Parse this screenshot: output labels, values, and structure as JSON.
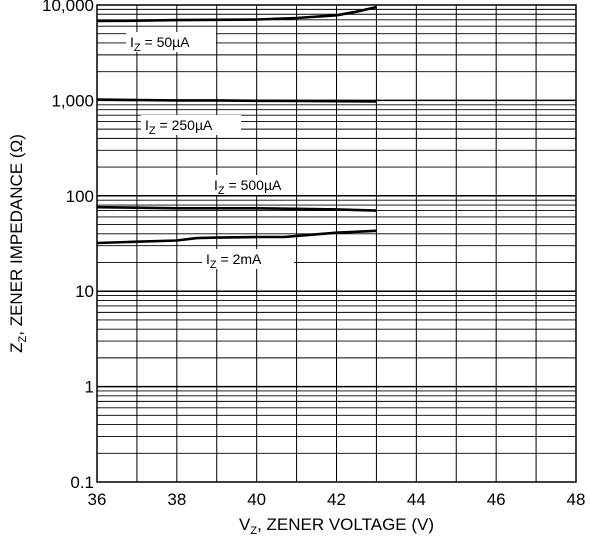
{
  "chart_data": {
    "type": "line",
    "xlabel": "V_Z, ZENER VOLTAGE (V)",
    "ylabel": "Z_Z, ZENER IMPEDANCE (Ω)",
    "xlim": [
      36,
      48
    ],
    "ylim": [
      0.1,
      10000
    ],
    "yscale": "log",
    "grid": true,
    "x_ticks": [
      "36",
      "38",
      "40",
      "42",
      "44",
      "46",
      "48"
    ],
    "y_ticks": [
      "0.1",
      "1",
      "10",
      "100",
      "1,000",
      "10,000"
    ],
    "series": [
      {
        "name": "I_Z = 50µA",
        "x": [
          36,
          37,
          38,
          39,
          40,
          41,
          42,
          42.5,
          43
        ],
        "y": [
          6800,
          6850,
          6950,
          7000,
          7050,
          7300,
          7800,
          8500,
          9500
        ]
      },
      {
        "name": "I_Z = 250µA",
        "x": [
          36,
          37,
          38,
          39,
          40,
          41,
          42,
          43
        ],
        "y": [
          1020,
          1010,
          1000,
          1000,
          990,
          985,
          980,
          975
        ]
      },
      {
        "name": "I_Z = 500µA",
        "x": [
          36,
          37,
          38,
          39,
          40,
          41,
          42,
          43
        ],
        "y": [
          76,
          75,
          74,
          74,
          74,
          73,
          72,
          70
        ]
      },
      {
        "name": "I_Z = 2mA",
        "x": [
          36,
          37,
          38,
          38.5,
          39,
          40,
          40.7,
          41,
          42,
          43
        ],
        "y": [
          32,
          33,
          34,
          36,
          36.5,
          37,
          37,
          38,
          41,
          43
        ]
      }
    ]
  }
}
